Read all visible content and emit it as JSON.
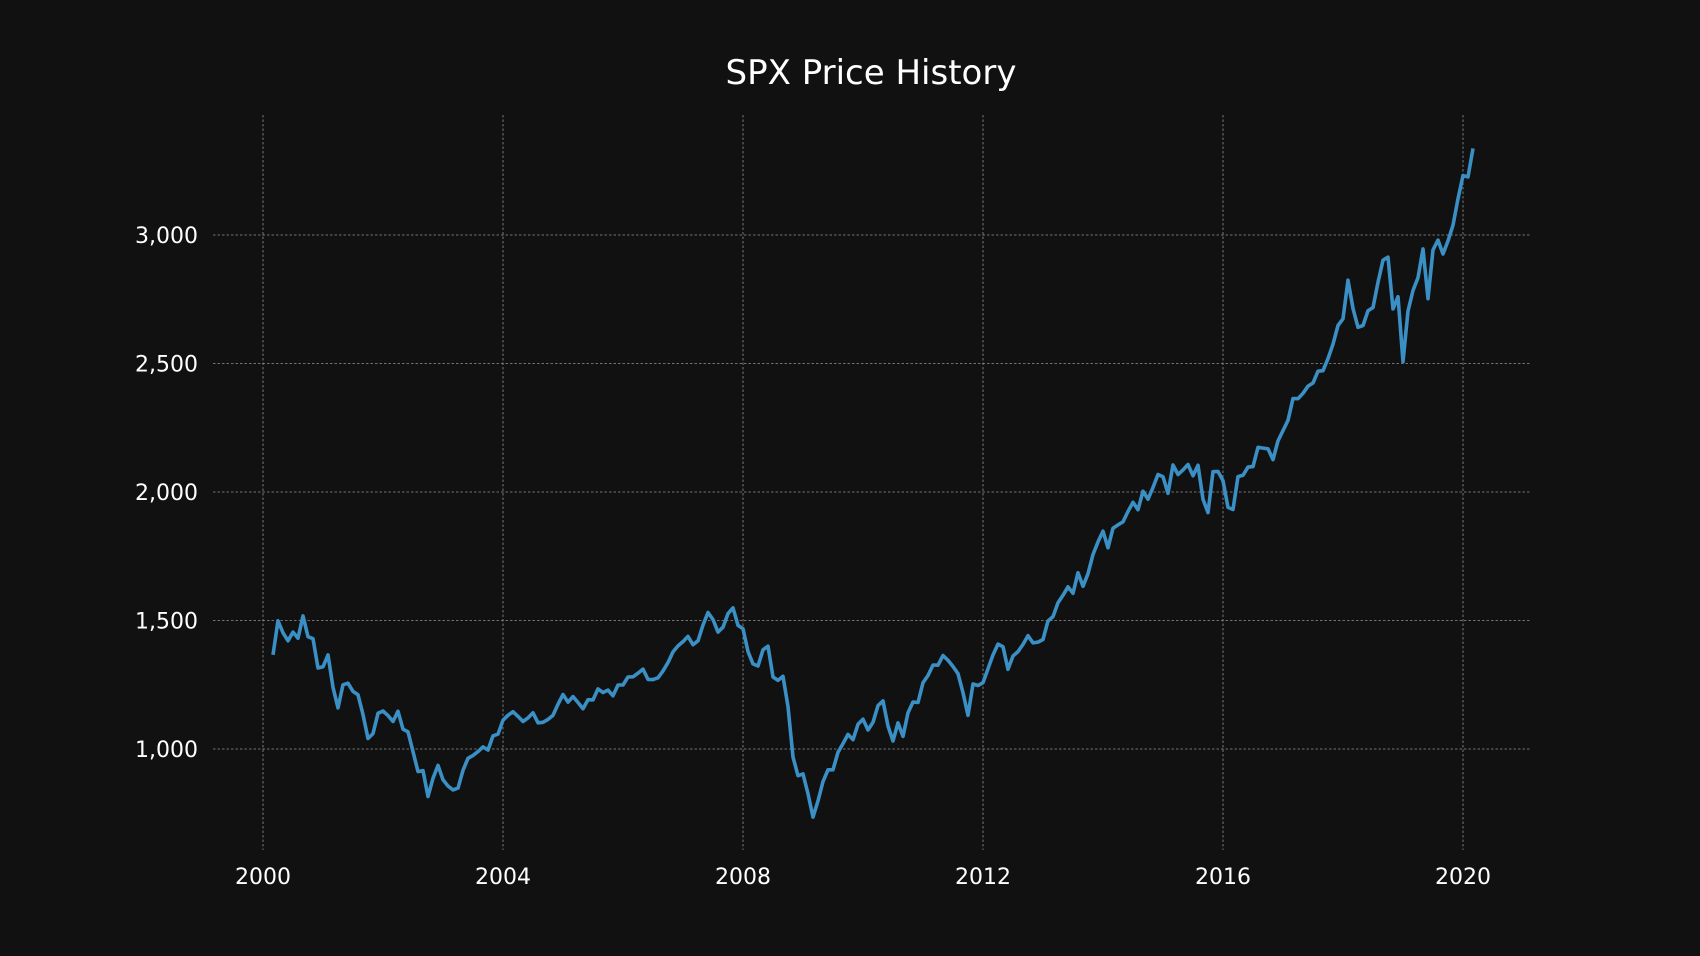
{
  "chart_data": {
    "type": "line",
    "title": "SPX Price History",
    "xlabel": "",
    "ylabel": "",
    "xlim": [
      1999.0,
      2021.0
    ],
    "ylim": [
      610,
      3460
    ],
    "grid": true,
    "x_ticks": [
      2000,
      2004,
      2008,
      2012,
      2016,
      2020
    ],
    "x_tick_labels": [
      "2000",
      "2004",
      "2008",
      "2012",
      "2016",
      "2020"
    ],
    "y_ticks": [
      1000,
      1500,
      2000,
      2500,
      3000
    ],
    "y_tick_labels": [
      "1,000",
      "1,500",
      "2,000",
      "2,500",
      "3,000"
    ],
    "line_color": "#3a8fc4",
    "background_color": "#111111",
    "series": [
      {
        "name": "SPX",
        "x_start": 2000.1667,
        "x_step": 0.08333,
        "values": [
          1366,
          1499,
          1452,
          1421,
          1455,
          1431,
          1518,
          1437,
          1429,
          1315,
          1320,
          1366,
          1240,
          1160,
          1250,
          1256,
          1224,
          1211,
          1134,
          1041,
          1060,
          1139,
          1148,
          1130,
          1107,
          1147,
          1077,
          1067,
          990,
          912,
          916,
          815,
          886,
          936,
          880,
          856,
          841,
          848,
          917,
          964,
          975,
          990,
          1008,
          996,
          1051,
          1058,
          1112,
          1131,
          1145,
          1127,
          1107,
          1121,
          1141,
          1102,
          1104,
          1115,
          1131,
          1174,
          1212,
          1182,
          1204,
          1181,
          1157,
          1192,
          1191,
          1234,
          1220,
          1229,
          1207,
          1249,
          1249,
          1280,
          1281,
          1295,
          1311,
          1271,
          1270,
          1277,
          1304,
          1336,
          1378,
          1401,
          1418,
          1438,
          1406,
          1421,
          1482,
          1531,
          1504,
          1455,
          1474,
          1527,
          1549,
          1481,
          1468,
          1379,
          1331,
          1323,
          1386,
          1400,
          1280,
          1267,
          1283,
          1165,
          969,
          896,
          903,
          826,
          735,
          798,
          873,
          919,
          919,
          987,
          1021,
          1057,
          1036,
          1096,
          1116,
          1074,
          1104,
          1169,
          1187,
          1089,
          1031,
          1102,
          1049,
          1141,
          1183,
          1181,
          1258,
          1286,
          1327,
          1326,
          1364,
          1345,
          1321,
          1293,
          1219,
          1131,
          1253,
          1247,
          1258,
          1312,
          1366,
          1408,
          1398,
          1310,
          1362,
          1379,
          1407,
          1441,
          1413,
          1416,
          1426,
          1498,
          1515,
          1569,
          1598,
          1631,
          1606,
          1686,
          1633,
          1682,
          1757,
          1806,
          1848,
          1783,
          1859,
          1872,
          1884,
          1924,
          1960,
          1931,
          2003,
          1972,
          2018,
          2068,
          2059,
          1995,
          2105,
          2068,
          2086,
          2107,
          2063,
          2104,
          1972,
          1920,
          2079,
          2080,
          2044,
          1940,
          1932,
          2060,
          2065,
          2097,
          2099,
          2174,
          2171,
          2168,
          2126,
          2199,
          2239,
          2279,
          2364,
          2363,
          2384,
          2412,
          2424,
          2470,
          2472,
          2519,
          2575,
          2648,
          2674,
          2824,
          2714,
          2641,
          2648,
          2705,
          2718,
          2816,
          2902,
          2914,
          2712,
          2760,
          2507,
          2704,
          2784,
          2834,
          2946,
          2752,
          2942,
          2980,
          2926,
          2977,
          3038,
          3141,
          3231,
          3226,
          3337
        ]
      }
    ]
  }
}
